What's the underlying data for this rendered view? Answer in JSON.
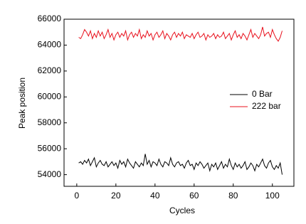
{
  "chart_data": {
    "type": "line",
    "x": [
      1,
      2,
      3,
      4,
      5,
      6,
      7,
      8,
      9,
      10,
      11,
      12,
      13,
      14,
      15,
      16,
      17,
      18,
      19,
      20,
      21,
      22,
      23,
      24,
      25,
      26,
      27,
      28,
      29,
      30,
      31,
      32,
      33,
      34,
      35,
      36,
      37,
      38,
      39,
      40,
      41,
      42,
      43,
      44,
      45,
      46,
      47,
      48,
      49,
      50,
      51,
      52,
      53,
      54,
      55,
      56,
      57,
      58,
      59,
      60,
      61,
      62,
      63,
      64,
      65,
      66,
      67,
      68,
      69,
      70,
      71,
      72,
      73,
      74,
      75,
      76,
      77,
      78,
      79,
      80,
      81,
      82,
      83,
      84,
      85,
      86,
      87,
      88,
      89,
      90,
      91,
      92,
      93,
      94,
      95,
      96,
      97,
      98,
      99,
      100,
      101,
      102,
      103,
      104,
      105
    ],
    "series": [
      {
        "name": "0 Bar",
        "color": "#000000",
        "values": [
          54900,
          55000,
          54800,
          55100,
          54900,
          55200,
          54700,
          55000,
          55300,
          54600,
          54900,
          55100,
          54800,
          54700,
          55000,
          54600,
          54800,
          55000,
          54700,
          54900,
          54500,
          55100,
          54800,
          55000,
          54600,
          55200,
          54900,
          54700,
          54500,
          55000,
          54800,
          54600,
          54900,
          54700,
          55600,
          54800,
          55100,
          54600,
          55000,
          54900,
          54700,
          55200,
          54800,
          54600,
          55000,
          54900,
          54700,
          55300,
          54800,
          54600,
          54900,
          55000,
          54700,
          54800,
          54500,
          54900,
          55100,
          54700,
          54800,
          54400,
          54900,
          54700,
          55000,
          54800,
          54500,
          54700,
          54900,
          54300,
          54800,
          54600,
          54900,
          54400,
          54700,
          55000,
          54500,
          54800,
          54600,
          55200,
          54700,
          54400,
          54900,
          54600,
          54800,
          54500,
          54700,
          55000,
          54400,
          54600,
          54900,
          54700,
          54300,
          54800,
          54600,
          54900,
          55200,
          54700,
          54500,
          54900,
          55100,
          54600,
          54400,
          54700,
          54500,
          54900,
          54000
        ]
      },
      {
        "name": "222 bar",
        "color": "#e8101c",
        "values": [
          64600,
          64500,
          64800,
          65200,
          65000,
          64700,
          65100,
          64500,
          64900,
          64600,
          65100,
          64700,
          65000,
          64500,
          64800,
          65200,
          64600,
          64900,
          64400,
          64800,
          65000,
          64600,
          64900,
          64700,
          65100,
          64400,
          64800,
          65000,
          64600,
          64900,
          64700,
          65200,
          64500,
          64800,
          64600,
          65100,
          64700,
          64900,
          64400,
          64800,
          65000,
          64600,
          64800,
          65100,
          64500,
          64900,
          64700,
          64400,
          64800,
          65000,
          64600,
          64900,
          64700,
          65000,
          64500,
          64800,
          64700,
          64600,
          64900,
          64500,
          64800,
          65000,
          64600,
          64700,
          64900,
          64400,
          64800,
          64600,
          64700,
          64900,
          64500,
          64800,
          64600,
          64700,
          65000,
          64500,
          64700,
          64900,
          64400,
          64800,
          65100,
          64600,
          64800,
          64500,
          64900,
          64700,
          64400,
          64800,
          65200,
          64600,
          64900,
          64700,
          64500,
          64800,
          65400,
          64700,
          64900,
          65000,
          64600,
          65200,
          64800,
          64500,
          64300,
          64600,
          65100
        ]
      }
    ],
    "x_label": "Cycles",
    "y_label": "Peak position",
    "xlim": [
      -6.5,
      111
    ],
    "xticks": [
      0,
      20,
      40,
      60,
      80,
      100
    ],
    "ylim": [
      53100,
      66000
    ],
    "yticks": [
      54000,
      56000,
      58000,
      60000,
      62000,
      64000,
      66000
    ]
  }
}
